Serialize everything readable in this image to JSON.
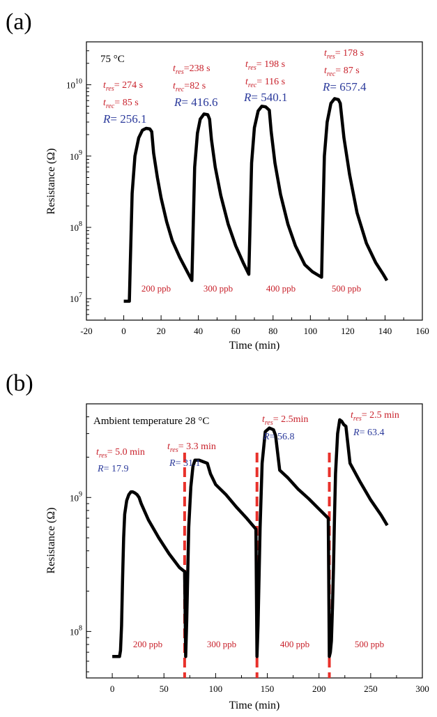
{
  "chart_data": [
    {
      "panel": "(a)",
      "type": "line",
      "xlabel": "Time (min)",
      "ylabel": "Resistance (Ω)",
      "xlim": [
        -20,
        160
      ],
      "ylim": [
        5000000,
        40000000000
      ],
      "yscale": "log",
      "xticks": [
        "-20",
        "0",
        "20",
        "40",
        "60",
        "80",
        "100",
        "120",
        "140",
        "160"
      ],
      "yticks": [
        {
          "value": 10000000,
          "base": "10",
          "exp": "7"
        },
        {
          "value": 100000000,
          "base": "10",
          "exp": "8"
        },
        {
          "value": 1000000000,
          "base": "10",
          "exp": "9"
        },
        {
          "value": 10000000000,
          "base": "10",
          "exp": "10"
        }
      ],
      "grid": false,
      "temperature_label": "75 °C",
      "series": [
        {
          "x": [
            0,
            3,
            3.5,
            4.5,
            6,
            8,
            10,
            12,
            14,
            15,
            16,
            18,
            20,
            23,
            26,
            30,
            34,
            36.5,
            37,
            38,
            39.5,
            41,
            43,
            45,
            46,
            47,
            49,
            52,
            56,
            60,
            64,
            67,
            67.5,
            68.5,
            70,
            72,
            74,
            76,
            78,
            79,
            81,
            84,
            88,
            92,
            97,
            101,
            106,
            106.5,
            107.5,
            109,
            111,
            113,
            115,
            116,
            118,
            121,
            125,
            130,
            135,
            139,
            141
          ],
          "y": [
            9200000,
            9200000,
            30000000,
            300000000,
            1000000000,
            1800000000,
            2300000000,
            2450000000,
            2400000000,
            2200000000,
            1100000000,
            500000000,
            260000000,
            120000000,
            65000000,
            38000000,
            24000000,
            18000000,
            60000000,
            700000000,
            2100000000,
            3300000000,
            3900000000,
            3800000000,
            3300000000,
            1700000000,
            700000000,
            280000000,
            110000000,
            55000000,
            32000000,
            22000000,
            70000000,
            800000000,
            2500000000,
            4300000000,
            5000000000,
            4900000000,
            4400000000,
            2200000000,
            800000000,
            290000000,
            110000000,
            55000000,
            30000000,
            24000000,
            20000000,
            80000000,
            1000000000,
            3000000000,
            5500000000,
            6400000000,
            6200000000,
            5500000000,
            1800000000,
            550000000,
            160000000,
            60000000,
            32000000,
            22000000,
            18000000
          ]
        }
      ],
      "annotations": [
        {
          "tres": "= 274 s",
          "trec": "= 85 s",
          "R": "= 256.1"
        },
        {
          "tres": "=238 s",
          "trec": "=82 s",
          "R": "= 416.6"
        },
        {
          "tres": "= 198 s",
          "trec": "= 116 s",
          "R": "= 540.1"
        },
        {
          "tres": "= 178 s",
          "trec": "= 87 s",
          "R": "= 657.4"
        }
      ],
      "concentrations": [
        "200 ppb",
        "300 ppb",
        "400 ppb",
        "500 ppb"
      ]
    },
    {
      "panel": "(b)",
      "type": "line",
      "xlabel": "Time (min)",
      "ylabel": "Resistance (Ω)",
      "xlim": [
        -25,
        300
      ],
      "ylim": [
        45000000,
        5000000000
      ],
      "yscale": "log",
      "xticks": [
        "0",
        "50",
        "100",
        "150",
        "200",
        "250",
        "300"
      ],
      "yticks": [
        {
          "value": 100000000,
          "base": "10",
          "exp": "8"
        },
        {
          "value": 1000000000,
          "base": "10",
          "exp": "9"
        }
      ],
      "grid": false,
      "temperature_label": "Ambient temperature 28 °C",
      "dashed_lines_x": [
        70,
        140,
        210
      ],
      "series": [
        {
          "x": [
            0,
            5,
            7,
            8,
            9,
            10,
            11,
            12,
            14,
            16,
            18,
            20,
            22,
            24,
            26,
            28,
            35,
            45,
            55,
            65,
            70,
            71,
            72,
            74,
            76,
            78,
            80,
            84,
            88,
            92,
            95,
            100,
            110,
            120,
            130,
            139,
            140,
            141,
            143,
            145,
            148,
            152,
            156,
            158,
            162,
            170,
            180,
            190,
            200,
            209,
            210,
            211,
            212,
            213,
            214,
            215,
            216,
            218,
            220,
            222,
            224,
            226,
            230,
            240,
            250,
            260,
            266
          ],
          "y": [
            65000000,
            65000000,
            65000000,
            72000000,
            110000000,
            250000000,
            500000000,
            750000000,
            950000000,
            1050000000,
            1100000000,
            1100000000,
            1080000000,
            1050000000,
            1000000000,
            900000000,
            680000000,
            500000000,
            380000000,
            300000000,
            280000000,
            65000000,
            120000000,
            600000000,
            1200000000,
            1700000000,
            1900000000,
            1900000000,
            1850000000,
            1800000000,
            1500000000,
            1250000000,
            1050000000,
            850000000,
            700000000,
            580000000,
            65000000,
            110000000,
            600000000,
            1800000000,
            3100000000,
            3300000000,
            3200000000,
            2900000000,
            1600000000,
            1400000000,
            1150000000,
            980000000,
            820000000,
            700000000,
            65000000,
            70000000,
            85000000,
            150000000,
            300000000,
            700000000,
            1500000000,
            3000000000,
            3800000000,
            3700000000,
            3500000000,
            3400000000,
            1800000000,
            1300000000,
            960000000,
            740000000,
            620000000
          ]
        }
      ],
      "annotations": [
        {
          "tres": "= 5.0 min",
          "R": "= 17.9"
        },
        {
          "tres": "= 3.3 min",
          "R": "= 31.1"
        },
        {
          "tres": "= 2.5min",
          "R": "= 56.8"
        },
        {
          "tres": "= 2.5 min",
          "R": "= 63.4"
        }
      ],
      "concentrations": [
        "200 ppb",
        "300 ppb",
        "400 ppb",
        "500 ppb"
      ]
    }
  ]
}
